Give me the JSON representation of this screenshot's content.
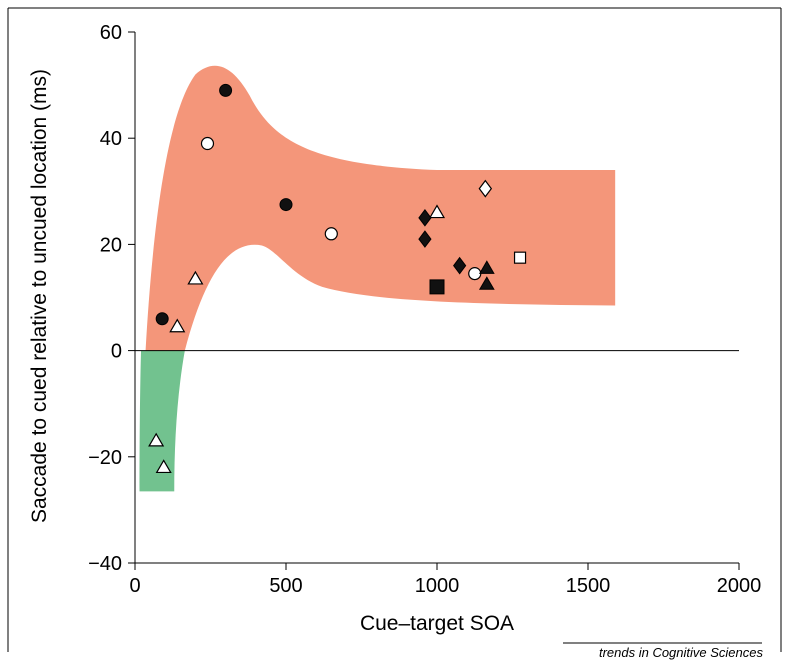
{
  "chart_data": {
    "type": "scatter",
    "title": "",
    "xlabel": "Cue–target SOA",
    "ylabel": "Saccade to cued relative to uncued location (ms)",
    "xlim": [
      0,
      2000
    ],
    "ylim": [
      -40,
      60
    ],
    "xticks": [
      "0",
      "500",
      "1000",
      "1500",
      "2000"
    ],
    "yticks": [
      "60",
      "40",
      "20",
      "0",
      "−20",
      "−40"
    ],
    "grid": false,
    "zero_line": true,
    "colors": {
      "facilitation_band": "#f4967a",
      "inhibition_band": "#72c28f",
      "marker_fill_dark": "#111111",
      "marker_fill_light": "#ffffff"
    },
    "bands": [
      {
        "label": "",
        "color": "facilitation_band"
      },
      {
        "label": "",
        "color": "inhibition_band"
      }
    ],
    "series": [
      {
        "marker": "filled-circle",
        "points": [
          [
            90,
            6
          ],
          [
            300,
            49
          ],
          [
            500,
            27.5
          ]
        ]
      },
      {
        "marker": "open-circle",
        "points": [
          [
            240,
            39
          ],
          [
            650,
            22
          ],
          [
            1125,
            14.5
          ]
        ]
      },
      {
        "marker": "open-triangle",
        "points": [
          [
            70,
            -17
          ],
          [
            95,
            -22
          ],
          [
            140,
            4.5
          ],
          [
            200,
            13.5
          ],
          [
            1000,
            26
          ]
        ]
      },
      {
        "marker": "filled-triangle",
        "points": [
          [
            1165,
            15.5
          ],
          [
            1165,
            12.5
          ]
        ]
      },
      {
        "marker": "filled-diamond",
        "points": [
          [
            960,
            25
          ],
          [
            960,
            21
          ],
          [
            1075,
            16
          ]
        ]
      },
      {
        "marker": "open-diamond",
        "points": [
          [
            1160,
            30.5
          ]
        ]
      },
      {
        "marker": "filled-square",
        "points": [
          [
            1000,
            12
          ]
        ]
      },
      {
        "marker": "open-square",
        "points": [
          [
            1275,
            17.5
          ]
        ]
      }
    ],
    "credit": "trends in Cognitive Sciences"
  }
}
